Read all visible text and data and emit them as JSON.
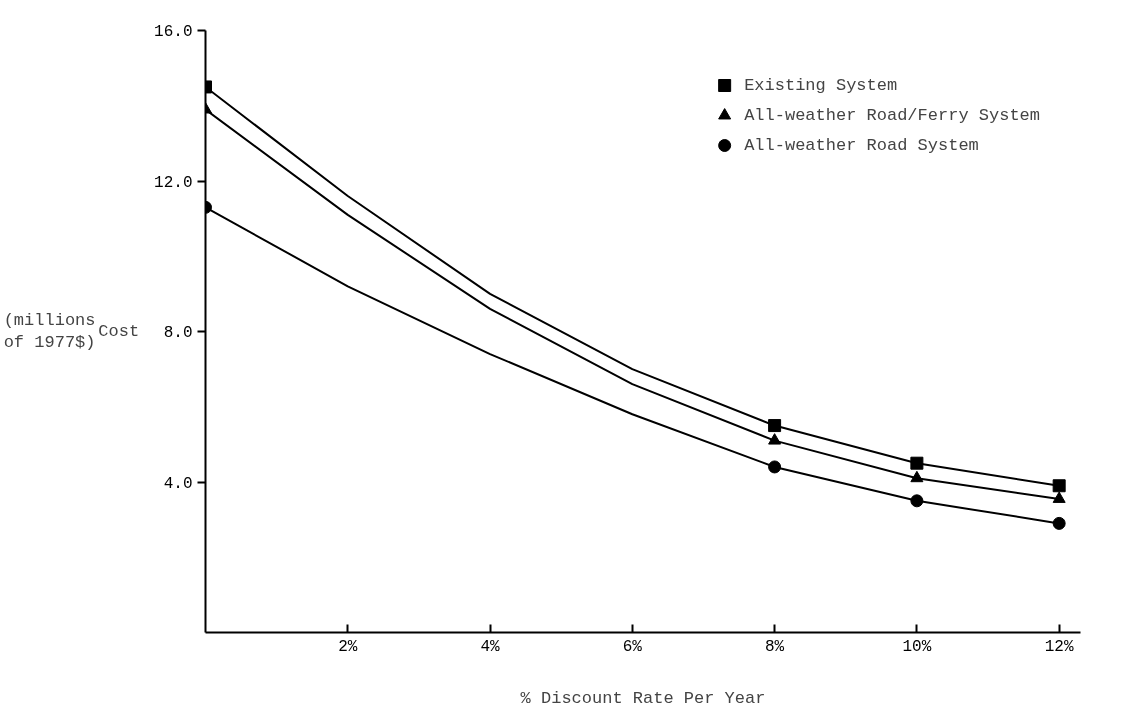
{
  "chart_data": {
    "type": "scatter",
    "xlabel": "% Discount Rate Per Year",
    "ylabel": "Cost",
    "annotations": [
      "(millions of 1977$)"
    ],
    "xlim": [
      0,
      12.3
    ],
    "xticks": [
      {
        "value": 2,
        "label": "2%"
      },
      {
        "value": 4,
        "label": "4%"
      },
      {
        "value": 6,
        "label": "6%"
      },
      {
        "value": 8,
        "label": "8%"
      },
      {
        "value": 10,
        "label": "10%"
      },
      {
        "value": 12,
        "label": "12%"
      }
    ],
    "ylim": [
      0,
      16
    ],
    "yticks": [
      {
        "value": 4,
        "label": "4.0"
      },
      {
        "value": 8,
        "label": "8.0"
      },
      {
        "value": 12,
        "label": "12.0"
      },
      {
        "value": 16,
        "label": "16.0"
      }
    ],
    "grid": false,
    "legend": "top right",
    "series": [
      {
        "name": "Existing System",
        "marker": "square",
        "color": "#000000",
        "x": [
          0,
          8,
          10,
          12
        ],
        "values": [
          14.5,
          5.5,
          4.5,
          3.9
        ]
      },
      {
        "name": "All-weather Road/Ferry System",
        "marker": "triangle",
        "color": "#000000",
        "x": [
          0,
          8,
          10,
          12
        ],
        "values": [
          13.9,
          5.1,
          4.1,
          3.55
        ]
      },
      {
        "name": "All-weather Road System",
        "marker": "circle",
        "color": "#000000",
        "x": [
          0,
          8,
          10,
          12
        ],
        "values": [
          11.3,
          4.4,
          3.5,
          2.9
        ]
      },
      {
        "type": "line",
        "line_style": "solid",
        "color": "#000000",
        "x": [
          0,
          2,
          4,
          6,
          8,
          10,
          12
        ],
        "values": [
          14.5,
          11.6,
          9.0,
          7.0,
          5.5,
          4.5,
          3.9
        ]
      },
      {
        "type": "line",
        "line_style": "solid",
        "color": "#000000",
        "x": [
          0,
          2,
          4,
          6,
          8,
          10,
          12
        ],
        "values": [
          13.9,
          11.1,
          8.6,
          6.6,
          5.1,
          4.1,
          3.55
        ]
      },
      {
        "type": "line",
        "line_style": "solid",
        "color": "#000000",
        "x": [
          0,
          2,
          4,
          6,
          8,
          10,
          12
        ],
        "values": [
          11.3,
          9.2,
          7.4,
          5.8,
          4.4,
          3.5,
          2.9
        ]
      }
    ]
  }
}
